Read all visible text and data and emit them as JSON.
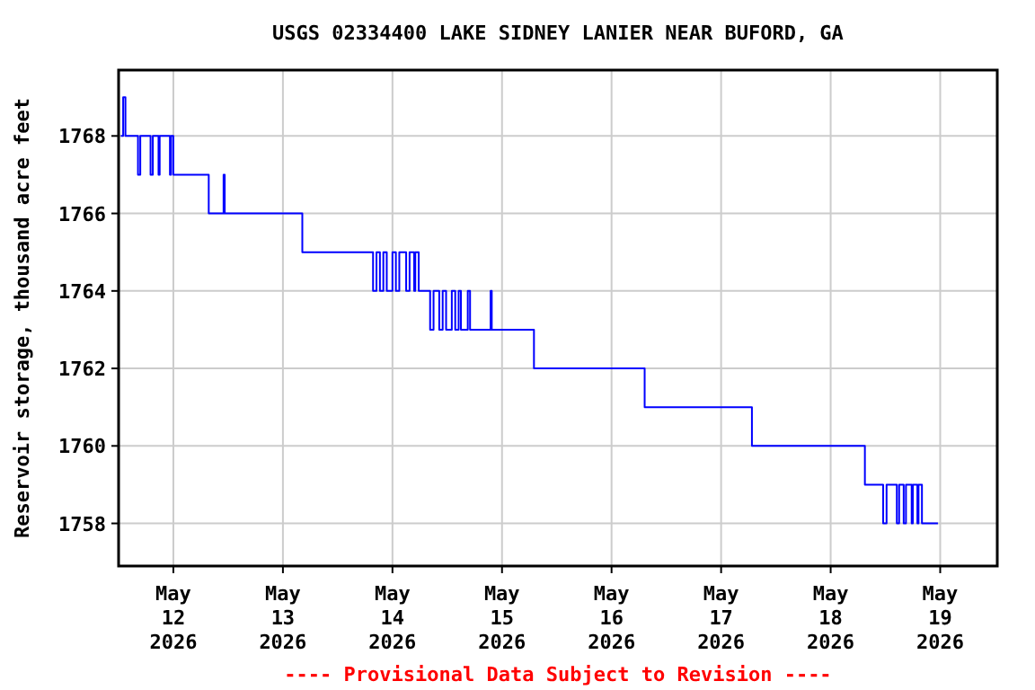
{
  "chart_data": {
    "type": "step",
    "title": "USGS 02334400 LAKE SIDNEY LANIER NEAR BUFORD, GA",
    "ylabel": "Reservoir storage, thousand acre feet",
    "annotations": [
      "---- Provisional Data Subject to Revision ----"
    ],
    "xlim": [
      "2026-05-11T12:00",
      "2026-05-19T12:30"
    ],
    "xticks": [
      {
        "value": "2026-05-12",
        "label": "May 12 2026"
      },
      {
        "value": "2026-05-13",
        "label": "May 13 2026"
      },
      {
        "value": "2026-05-14",
        "label": "May 14 2026"
      },
      {
        "value": "2026-05-15",
        "label": "May 15 2026"
      },
      {
        "value": "2026-05-16",
        "label": "May 16 2026"
      },
      {
        "value": "2026-05-17",
        "label": "May 17 2026"
      },
      {
        "value": "2026-05-18",
        "label": "May 18 2026"
      },
      {
        "value": "2026-05-19",
        "label": "May 19 2026"
      }
    ],
    "ylim": [
      1756.9,
      1769.7
    ],
    "yticks": [
      1758,
      1760,
      1762,
      1764,
      1766,
      1768
    ],
    "grid": true,
    "series": [
      {
        "color": "#0000ff",
        "x": [
          "2026-05-11T12:30",
          "2026-05-11T13:00",
          "2026-05-11T13:30",
          "2026-05-11T16:15",
          "2026-05-11T16:45",
          "2026-05-11T19:00",
          "2026-05-11T19:30",
          "2026-05-11T20:45",
          "2026-05-11T21:00",
          "2026-05-11T23:15",
          "2026-05-11T23:30",
          "2026-05-12T00:00",
          "2026-05-12T07:45",
          "2026-05-12T11:00",
          "2026-05-12T11:15",
          "2026-05-13T04:15",
          "2026-05-13T19:45",
          "2026-05-13T20:30",
          "2026-05-13T21:15",
          "2026-05-13T22:00",
          "2026-05-13T22:45",
          "2026-05-14T00:00",
          "2026-05-14T00:45",
          "2026-05-14T01:30",
          "2026-05-14T03:00",
          "2026-05-14T03:45",
          "2026-05-14T04:45",
          "2026-05-14T05:00",
          "2026-05-14T05:45",
          "2026-05-14T08:15",
          "2026-05-14T09:00",
          "2026-05-14T10:15",
          "2026-05-14T11:00",
          "2026-05-14T11:45",
          "2026-05-14T13:00",
          "2026-05-14T13:45",
          "2026-05-14T14:30",
          "2026-05-14T15:00",
          "2026-05-14T16:30",
          "2026-05-14T17:00",
          "2026-05-14T21:30",
          "2026-05-14T21:45",
          "2026-05-15T07:00",
          "2026-05-16T07:15",
          "2026-05-17T06:45",
          "2026-05-18T07:30",
          "2026-05-18T11:30",
          "2026-05-18T12:15",
          "2026-05-18T14:30",
          "2026-05-18T15:00",
          "2026-05-18T16:00",
          "2026-05-18T16:30",
          "2026-05-18T17:45",
          "2026-05-18T18:00",
          "2026-05-18T19:00",
          "2026-05-18T19:15",
          "2026-05-18T20:00",
          "2026-05-18T23:30"
        ],
        "values": [
          1768,
          1769,
          1768,
          1767,
          1768,
          1767,
          1768,
          1767,
          1768,
          1767,
          1768,
          1767,
          1766,
          1767,
          1766,
          1765,
          1764,
          1765,
          1764,
          1765,
          1764,
          1765,
          1764,
          1765,
          1764,
          1765,
          1764,
          1765,
          1764,
          1763,
          1764,
          1763,
          1764,
          1763,
          1764,
          1763,
          1764,
          1763,
          1764,
          1763,
          1764,
          1763,
          1762,
          1761,
          1760,
          1759,
          1758,
          1759,
          1758,
          1759,
          1758,
          1759,
          1758,
          1759,
          1758,
          1759,
          1758,
          1758
        ]
      }
    ]
  }
}
